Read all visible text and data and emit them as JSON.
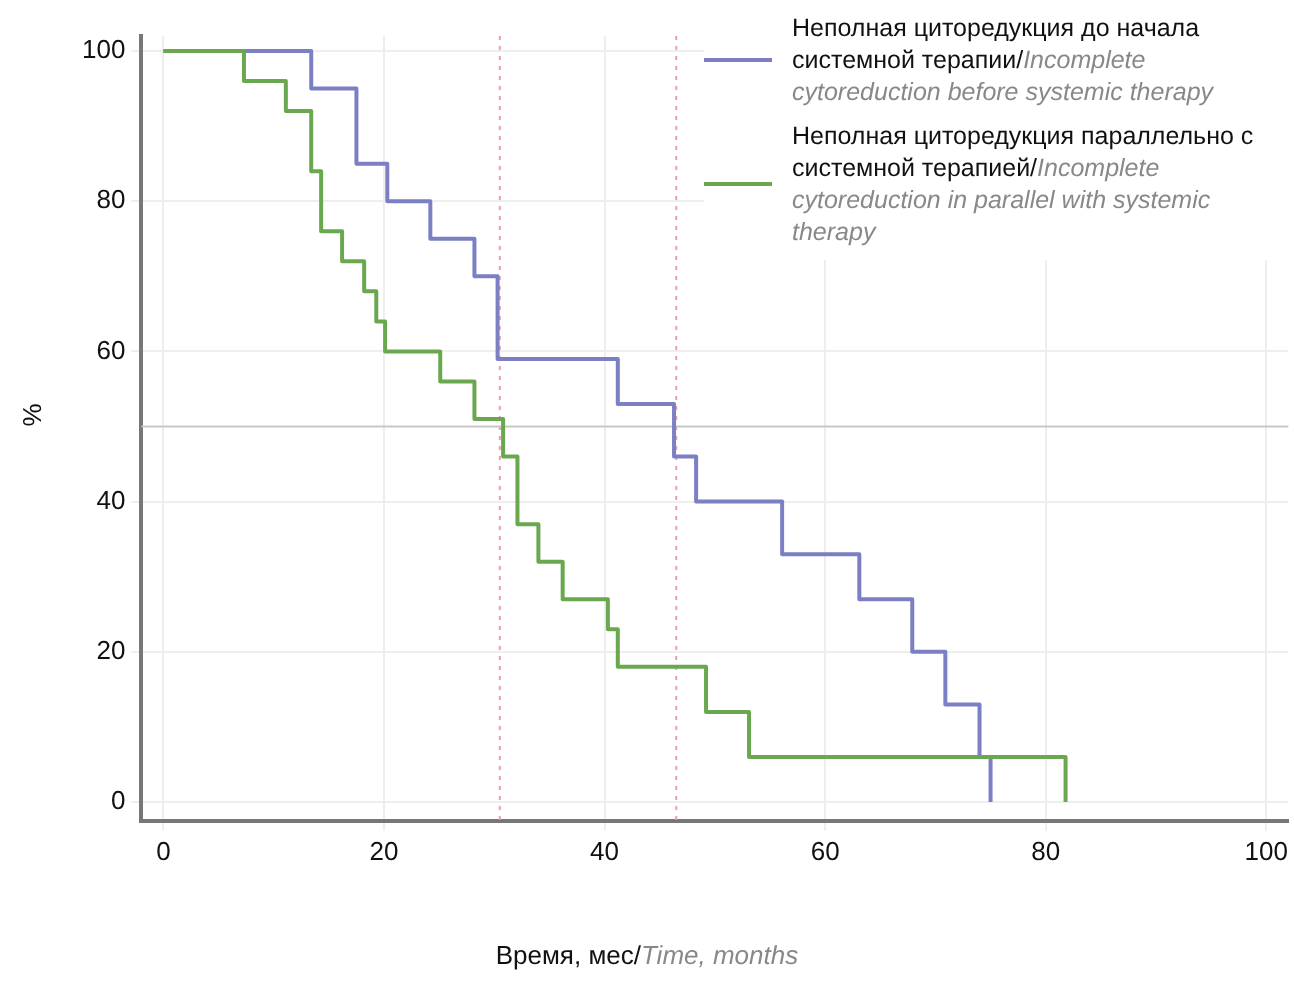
{
  "chart_data": {
    "type": "step",
    "xlabel": "Время, мес/Time, months",
    "ylabel": "%",
    "xlim": [
      -2,
      102
    ],
    "xticks": [
      0,
      20,
      40,
      60,
      80,
      100
    ],
    "ylim": [
      -2.5,
      102
    ],
    "yticks": [
      0,
      20,
      40,
      60,
      80,
      100
    ],
    "grid": true,
    "legend": "top right",
    "marker": "none",
    "line_style": "solid",
    "series": [
      {
        "name": "Неполная циторедукция до начала системной терапии/Incomplete cytoreduction before systemic therapy",
        "color": "#7b7fc4",
        "x": [
          0,
          13.4,
          17.5,
          20.3,
          24.2,
          28.2,
          30.3,
          41.2,
          46.3,
          48.3,
          56.1,
          63.1,
          67.9,
          70.9,
          74,
          75
        ],
        "values": [
          100,
          95,
          85,
          80,
          75,
          70,
          59,
          53,
          46,
          40,
          33,
          27,
          20,
          13,
          6,
          0
        ]
      },
      {
        "name": "Неполная циторедукция параллельно с системной терапией/Incomplete cytoreduction in parallel with systemic therapy",
        "color": "#6aa84f",
        "x": [
          0,
          7.3,
          11.1,
          13.4,
          14.3,
          16.2,
          18.2,
          19.3,
          20.1,
          25.1,
          28.2,
          30.8,
          32.1,
          34,
          36.2,
          40.3,
          41.2,
          49.2,
          53.1,
          81.8
        ],
        "values": [
          100,
          96,
          92,
          84,
          76,
          72,
          68,
          64,
          60,
          56,
          51,
          46,
          37,
          32,
          27,
          23,
          18,
          12,
          6,
          0
        ]
      }
    ],
    "ref_lines": [
      {
        "axis": "x",
        "value": 30.5,
        "color": "#e8a0a8",
        "line_style": "dotted"
      },
      {
        "axis": "x",
        "value": 46.5,
        "color": "#e8a0a8",
        "line_style": "dotted"
      },
      {
        "axis": "y",
        "value": 50,
        "color": "#c8c8c8",
        "line_style": "solid"
      }
    ]
  }
}
